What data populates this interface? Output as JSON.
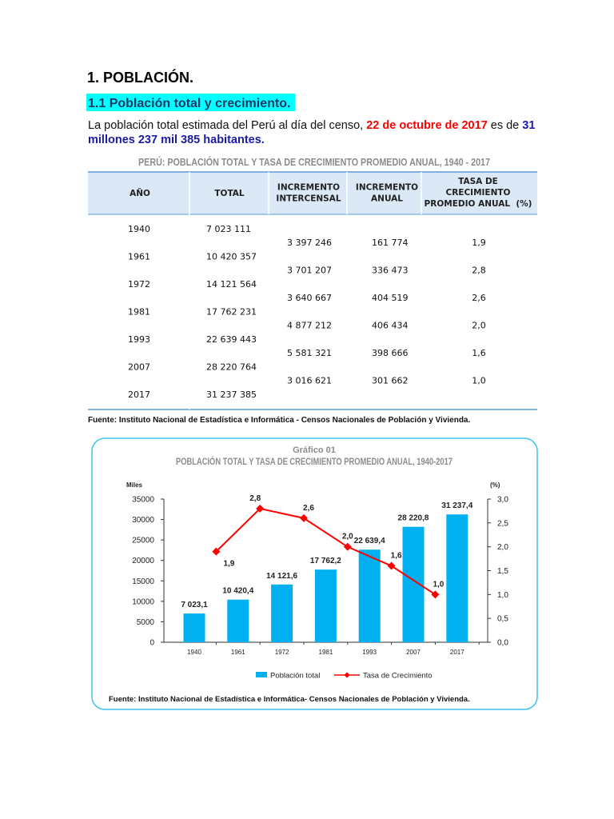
{
  "heading": "1. POBLACIÓN.",
  "subheading": "1.1 Población total y crecimiento.",
  "intro": {
    "part1": "La población total estimada del Perú al día del censo, ",
    "date": "22 de octubre de 2017",
    "part2": " es de ",
    "total": [
      "31",
      "millones 237 mil 385 habitantes."
    ]
  },
  "table": {
    "title": "PERÚ: POBLACIÓN TOTAL Y TASA DE CRECIMIENTO PROMEDIO ANUAL, 1940 - 2017",
    "headers": [
      [
        "AÑO"
      ],
      [
        "TOTAL"
      ],
      [
        "INCREMENTO",
        "INTERCENSAL"
      ],
      [
        "INCREMENTO",
        "ANUAL"
      ],
      [
        "TASA DE",
        "CRECIMIENTO",
        "PROMEDIO ANUAL  (%)"
      ]
    ],
    "census": [
      {
        "year": "1940",
        "total": "7 023 111"
      },
      {
        "year": "1961",
        "total": "10 420 357"
      },
      {
        "year": "1972",
        "total": "14 121 564"
      },
      {
        "year": "1981",
        "total": "17 762 231"
      },
      {
        "year": "1993",
        "total": "22 639 443"
      },
      {
        "year": "2007",
        "total": "28 220 764"
      },
      {
        "year": "2017",
        "total": "31 237 385"
      }
    ],
    "intervals": [
      {
        "intercensal": "3 397 246",
        "annual": "161 774",
        "rate": "1,9"
      },
      {
        "intercensal": "3 701 207",
        "annual": "336 473",
        "rate": "2,8"
      },
      {
        "intercensal": "3 640 667",
        "annual": "404 519",
        "rate": "2,6"
      },
      {
        "intercensal": "4 877 212",
        "annual": "406 434",
        "rate": "2,0"
      },
      {
        "intercensal": "5 581 321",
        "annual": "398 666",
        "rate": "1,6"
      },
      {
        "intercensal": "3 016 621",
        "annual": "301 662",
        "rate": "1,0"
      }
    ],
    "source": "Fuente: Instituto Nacional de Estadística e Informática - Censos Nacionales de Población y Vivienda."
  },
  "chart_data": {
    "type": "bar",
    "title": "Gráfico 01",
    "subtitle": "POBLACIÓN TOTAL Y TASA DE CRECIMIENTO PROMEDIO ANUAL, 1940-2017",
    "ylabel": "Miles",
    "y2label": "(%)",
    "categories": [
      "1940",
      "1961",
      "1972",
      "1981",
      "1993",
      "2007",
      "2017"
    ],
    "series": [
      {
        "name": "Población total",
        "type": "bar",
        "color": "#00b0f0",
        "values": [
          7023.1,
          10420.4,
          14121.6,
          17762.2,
          22639.4,
          28220.8,
          31237.4
        ],
        "value_labels": [
          "7 023,1",
          "10 420,4",
          "14 121,6",
          "17 762,2",
          "22 639,4",
          "28 220,8",
          "31 237,4"
        ]
      },
      {
        "name": "Tasa de Crecimiento",
        "type": "line",
        "axis": "y2",
        "color": "#ff0000",
        "values": [
          1.9,
          2.8,
          2.6,
          2.0,
          1.6,
          1.0,
          null
        ],
        "value_labels": [
          "1,9",
          "2,8",
          "2,6",
          "2,0",
          "1,6",
          "1,0",
          null
        ]
      }
    ],
    "ylim": [
      0,
      35000
    ],
    "yticks": [
      0,
      5000,
      10000,
      15000,
      20000,
      25000,
      30000,
      35000
    ],
    "y2lim": [
      0,
      3
    ],
    "y2ticks": [
      {
        "value": 0,
        "label": "0,0"
      },
      {
        "value": 0.5,
        "label": "0,5"
      },
      {
        "value": 1,
        "label": "1,0"
      },
      {
        "value": 1.5,
        "label": "1,5"
      },
      {
        "value": 2,
        "label": "2,0"
      },
      {
        "value": 2.5,
        "label": "2,5"
      },
      {
        "value": 3,
        "label": "3,0"
      }
    ],
    "legend": "bottom",
    "source": "Fuente: Instituto Nacional de Estadística e Informática- Censos Nacionales de Población y Vivienda."
  }
}
